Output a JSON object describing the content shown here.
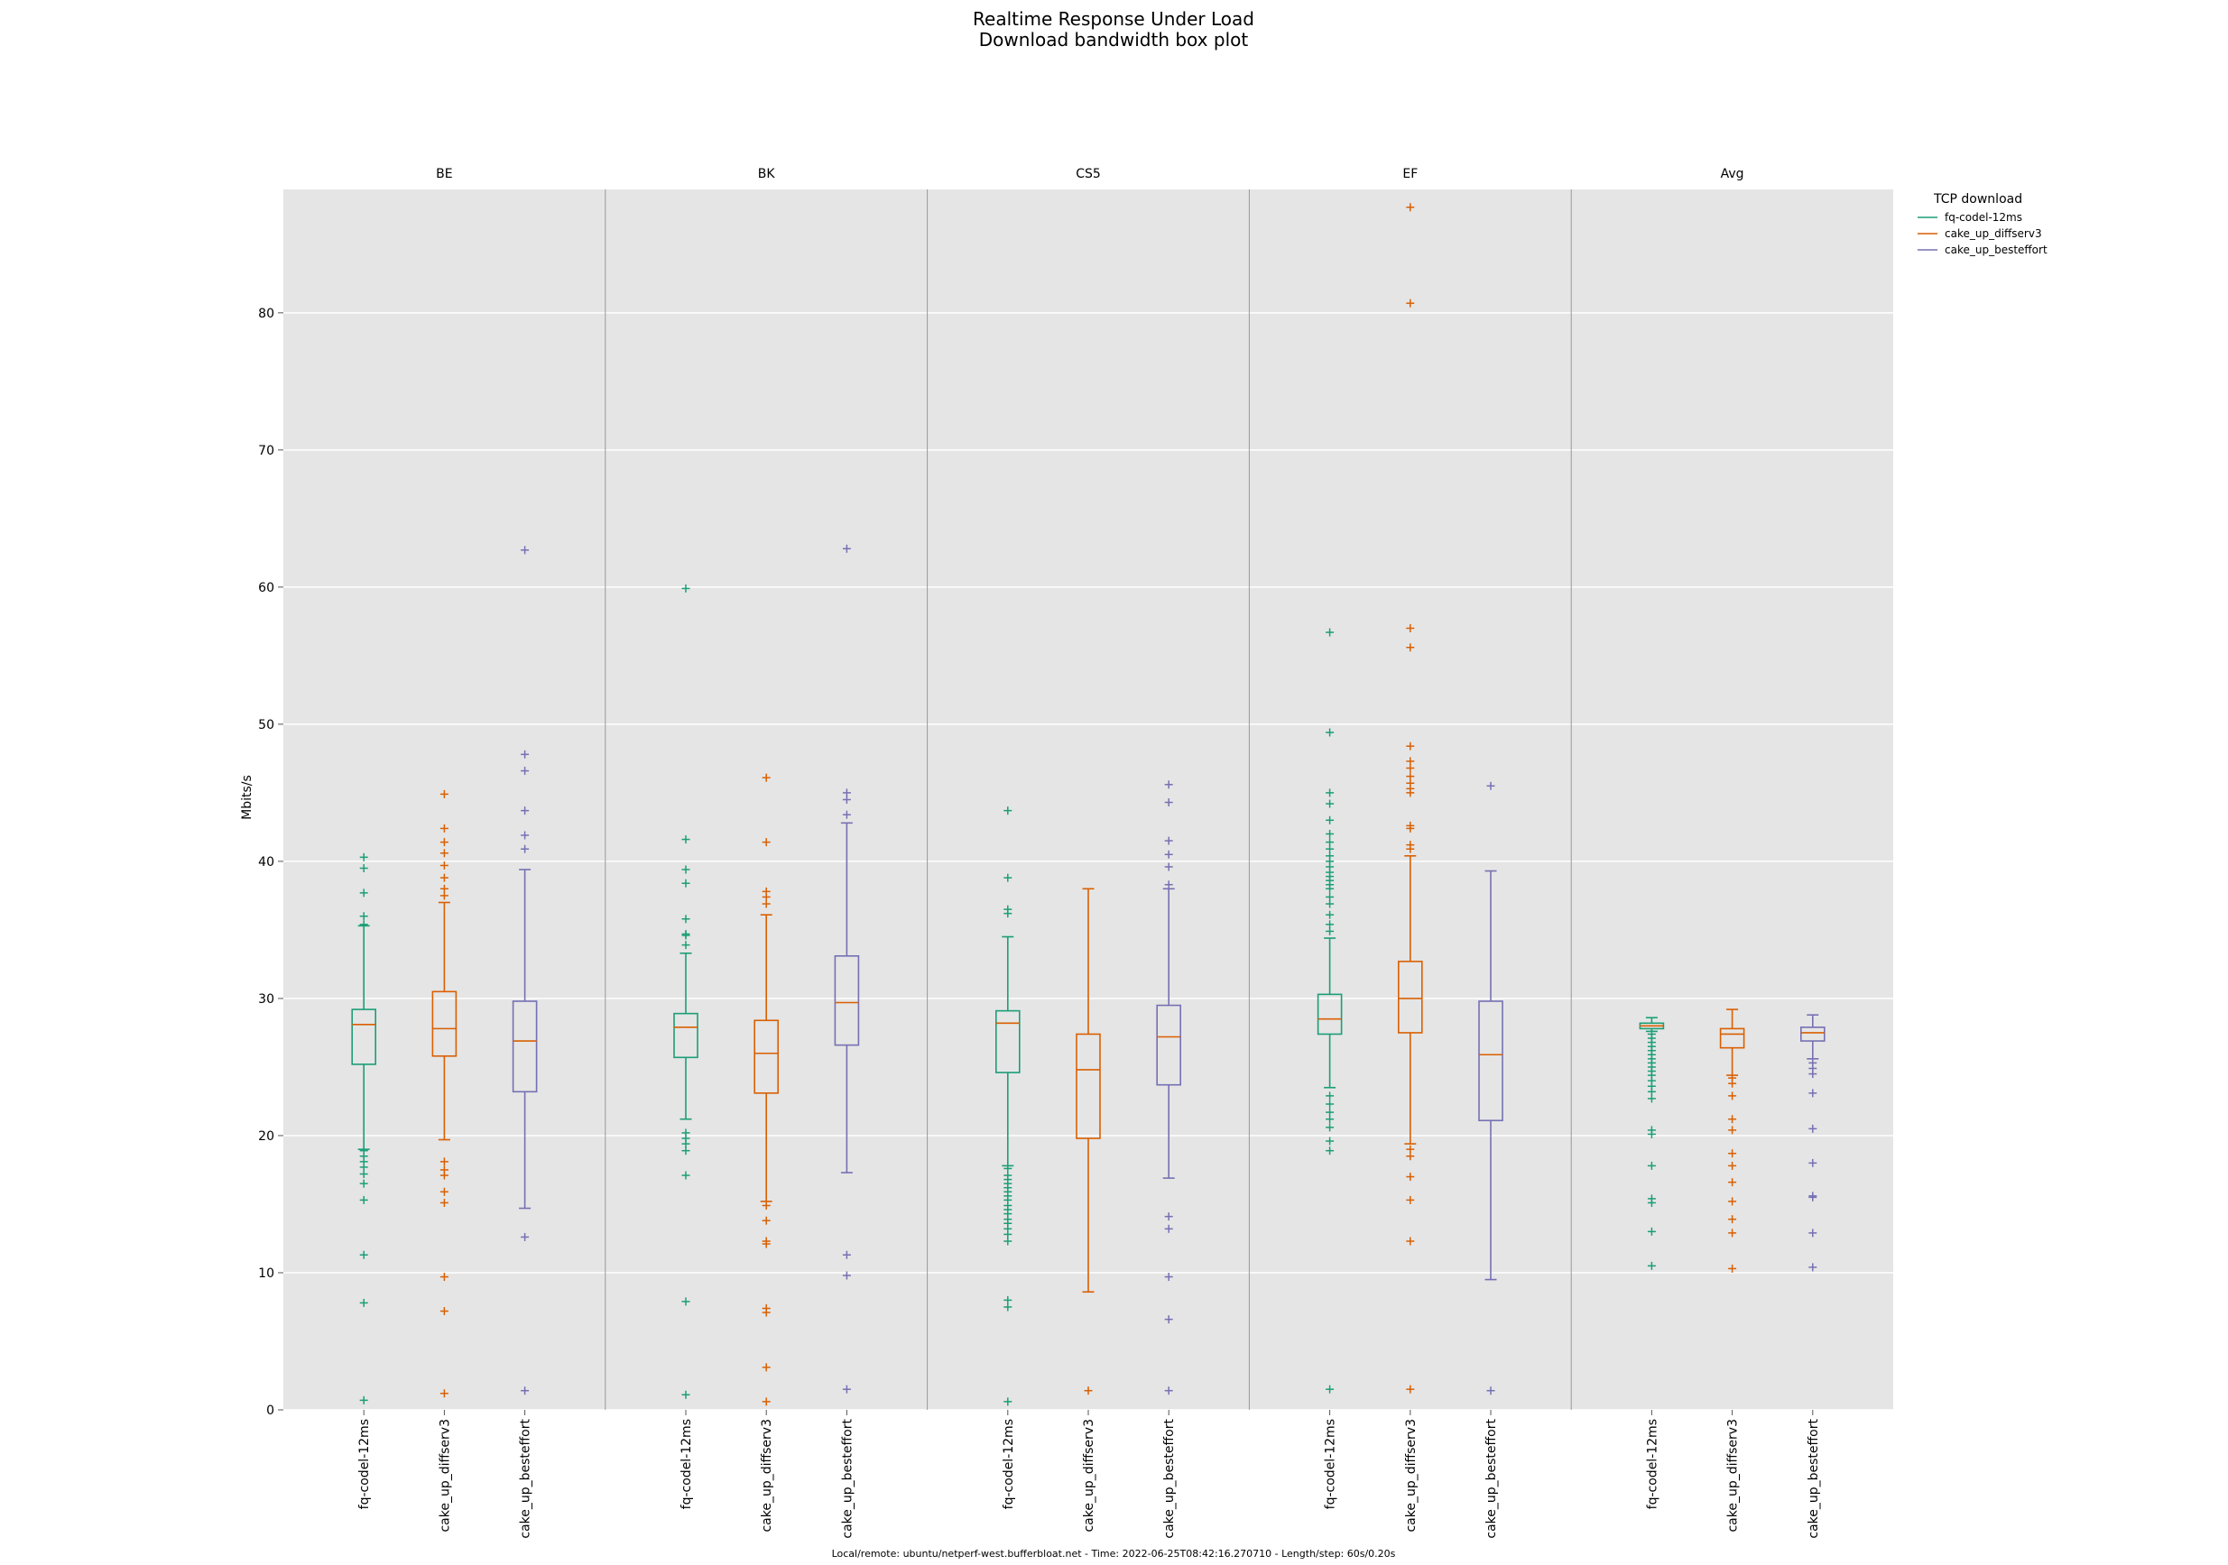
{
  "chart_data": {
    "type": "box",
    "title": "Realtime Response Under Load",
    "subtitle": "Download bandwidth box plot",
    "ylabel": "Mbits/s",
    "ylim": [
      0,
      89
    ],
    "yticks": [
      0,
      10,
      20,
      30,
      40,
      50,
      60,
      70,
      80
    ],
    "grid": true,
    "legend_title": "TCP download",
    "legend_position": "top-right, outside plot",
    "footer": "Local/remote: ubuntu/netperf-west.bufferbloat.net - Time: 2022-06-25T08:42:16.270710 - Length/step: 60s/0.20s",
    "colors": {
      "fq-codel-12ms": "#1b9e77",
      "cake_up_diffserv3": "#d95f02",
      "cake_up_besteffort": "#7570b3"
    },
    "series": [
      {
        "name": "fq-codel-12ms"
      },
      {
        "name": "cake_up_diffserv3"
      },
      {
        "name": "cake_up_besteffort"
      }
    ],
    "panels": [
      {
        "label": "BE",
        "boxes": [
          {
            "series": "fq-codel-12ms",
            "whislo": 19.0,
            "q1": 25.2,
            "median": 28.1,
            "q3": 29.2,
            "whishi": 35.3,
            "fliers": [
              40.3,
              39.5,
              37.7,
              36.0,
              35.4,
              18.9,
              18.5,
              18.1,
              17.7,
              17.2,
              16.5,
              15.3,
              11.3,
              7.8,
              0.7
            ]
          },
          {
            "series": "cake_up_diffserv3",
            "whislo": 19.7,
            "q1": 25.8,
            "median": 27.8,
            "q3": 30.5,
            "whishi": 37.0,
            "fliers": [
              44.9,
              42.4,
              41.4,
              40.6,
              39.7,
              38.8,
              38.0,
              37.5,
              18.1,
              17.5,
              17.1,
              15.9,
              15.1,
              9.7,
              7.2,
              1.2
            ]
          },
          {
            "series": "cake_up_besteffort",
            "whislo": 14.7,
            "q1": 23.2,
            "median": 26.9,
            "q3": 29.8,
            "whishi": 39.4,
            "fliers": [
              62.7,
              47.8,
              46.6,
              43.7,
              41.9,
              40.9,
              12.6,
              1.4
            ]
          }
        ]
      },
      {
        "label": "BK",
        "boxes": [
          {
            "series": "fq-codel-12ms",
            "whislo": 21.2,
            "q1": 25.7,
            "median": 27.9,
            "q3": 28.9,
            "whishi": 33.3,
            "fliers": [
              59.9,
              41.6,
              39.4,
              38.4,
              35.8,
              34.7,
              34.6,
              33.9,
              20.2,
              19.8,
              19.4,
              18.9,
              17.1,
              7.9,
              1.1
            ]
          },
          {
            "series": "cake_up_diffserv3",
            "whislo": 15.2,
            "q1": 23.1,
            "median": 26.0,
            "q3": 28.4,
            "whishi": 36.1,
            "fliers": [
              46.1,
              41.4,
              37.8,
              37.4,
              36.9,
              14.9,
              13.8,
              12.3,
              12.1,
              7.4,
              7.1,
              3.1,
              0.6
            ]
          },
          {
            "series": "cake_up_besteffort",
            "whislo": 17.3,
            "q1": 26.6,
            "median": 29.7,
            "q3": 33.1,
            "whishi": 42.8,
            "fliers": [
              62.8,
              45.0,
              44.5,
              43.4,
              11.3,
              9.8,
              1.5
            ]
          }
        ]
      },
      {
        "label": "CS5",
        "boxes": [
          {
            "series": "fq-codel-12ms",
            "whislo": 17.8,
            "q1": 24.6,
            "median": 28.2,
            "q3": 29.1,
            "whishi": 34.5,
            "fliers": [
              43.7,
              38.8,
              36.5,
              36.2,
              17.6,
              17.1,
              16.8,
              16.5,
              16.2,
              15.9,
              15.6,
              15.3,
              14.9,
              14.6,
              14.3,
              13.9,
              13.6,
              13.2,
              12.8,
              12.3,
              8.0,
              7.5,
              0.6
            ]
          },
          {
            "series": "cake_up_diffserv3",
            "whislo": 8.6,
            "q1": 19.8,
            "median": 24.8,
            "q3": 27.4,
            "whishi": 38.0,
            "fliers": [
              1.4
            ]
          },
          {
            "series": "cake_up_besteffort",
            "whislo": 16.9,
            "q1": 23.7,
            "median": 27.2,
            "q3": 29.5,
            "whishi": 38.0,
            "fliers": [
              45.6,
              44.3,
              41.5,
              40.5,
              39.6,
              38.3,
              14.1,
              13.2,
              9.7,
              6.6,
              1.4
            ]
          }
        ]
      },
      {
        "label": "EF",
        "boxes": [
          {
            "series": "fq-codel-12ms",
            "whislo": 23.5,
            "q1": 27.4,
            "median": 28.5,
            "q3": 30.3,
            "whishi": 34.4,
            "fliers": [
              56.7,
              49.4,
              45.0,
              44.2,
              43.0,
              42.0,
              41.4,
              40.9,
              40.4,
              40.0,
              39.6,
              39.2,
              38.9,
              38.6,
              38.3,
              38.0,
              37.4,
              36.9,
              36.1,
              35.4,
              34.9,
              22.9,
              22.3,
              21.7,
              21.2,
              20.6,
              19.6,
              18.9,
              1.5
            ]
          },
          {
            "series": "cake_up_diffserv3",
            "whislo": 19.4,
            "q1": 27.5,
            "median": 30.0,
            "q3": 32.7,
            "whishi": 40.4,
            "fliers": [
              87.7,
              80.7,
              57.0,
              55.6,
              48.4,
              47.3,
              46.8,
              46.2,
              45.7,
              45.3,
              45.0,
              42.6,
              42.4,
              41.2,
              40.9,
              19.0,
              18.5,
              17.0,
              15.3,
              12.3,
              1.5
            ]
          },
          {
            "series": "cake_up_besteffort",
            "whislo": 9.5,
            "q1": 21.1,
            "median": 25.9,
            "q3": 29.8,
            "whishi": 39.3,
            "fliers": [
              45.5,
              1.4
            ]
          }
        ]
      },
      {
        "label": "Avg",
        "boxes": [
          {
            "series": "fq-codel-12ms",
            "whislo": 27.6,
            "q1": 27.8,
            "median": 28.0,
            "q3": 28.2,
            "whishi": 28.6,
            "fliers": [
              27.4,
              27.1,
              26.8,
              26.5,
              26.2,
              25.9,
              25.6,
              25.3,
              25.0,
              24.7,
              24.4,
              24.0,
              23.6,
              23.2,
              22.7,
              20.4,
              20.1,
              17.8,
              15.4,
              15.1,
              13.0,
              10.5
            ]
          },
          {
            "series": "cake_up_diffserv3",
            "whislo": 24.4,
            "q1": 26.4,
            "median": 27.4,
            "q3": 27.8,
            "whishi": 29.2,
            "fliers": [
              24.2,
              23.8,
              22.9,
              21.2,
              20.4,
              18.7,
              17.8,
              16.6,
              15.2,
              13.9,
              12.9,
              10.3
            ]
          },
          {
            "series": "cake_up_besteffort",
            "whislo": 25.6,
            "q1": 26.9,
            "median": 27.5,
            "q3": 27.9,
            "whishi": 28.8,
            "fliers": [
              25.3,
              24.9,
              24.5,
              23.1,
              20.5,
              18.0,
              15.6,
              15.5,
              12.9,
              10.4
            ]
          }
        ]
      }
    ]
  }
}
